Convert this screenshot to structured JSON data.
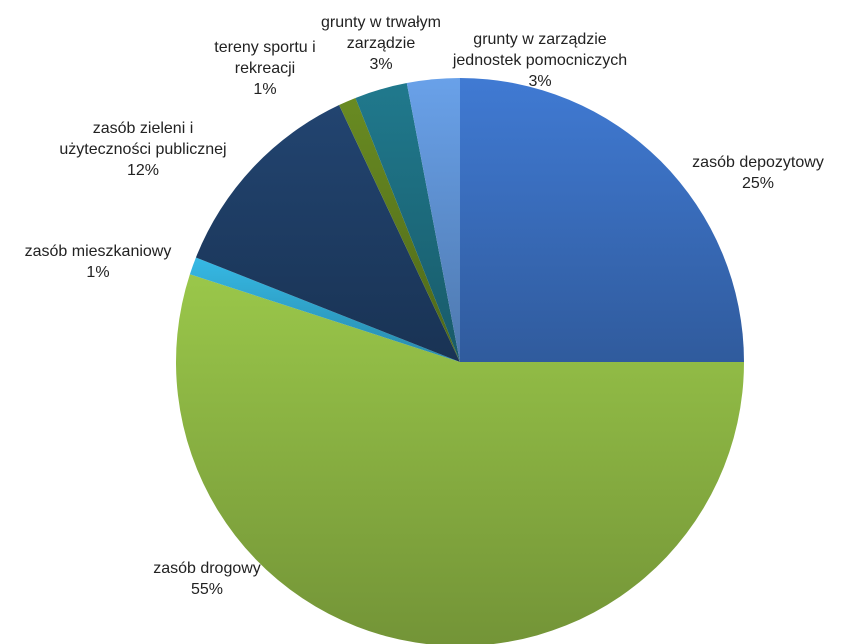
{
  "chart_data": {
    "type": "pie",
    "start_angle_deg": 90,
    "direction": "clockwise",
    "slices": [
      {
        "name": "zasób depozytowy",
        "value": 25,
        "value_label": "25%",
        "color": "#3a6fc0"
      },
      {
        "name": "zasób drogowy",
        "value": 55,
        "value_label": "55%",
        "color": "#8cb543"
      },
      {
        "name": "zasób mieszkaniowy",
        "value": 1,
        "value_label": "1%",
        "color": "#31a8d0"
      },
      {
        "name": "zasób zieleni i\nużyteczności publicznej",
        "value": 12,
        "value_label": "12%",
        "color": "#1f3e66"
      },
      {
        "name": "tereny sportu i\nrekreacji",
        "value": 1,
        "value_label": "1%",
        "color": "#5f7e1f"
      },
      {
        "name": "grunty w trwałym\nzarządzie",
        "value": 3,
        "value_label": "3%",
        "color": "#1d6e80"
      },
      {
        "name": "grunty w zarządzie\njednostek pomocniczych",
        "value": 3,
        "value_label": "3%",
        "color": "#5f92d4"
      }
    ]
  }
}
